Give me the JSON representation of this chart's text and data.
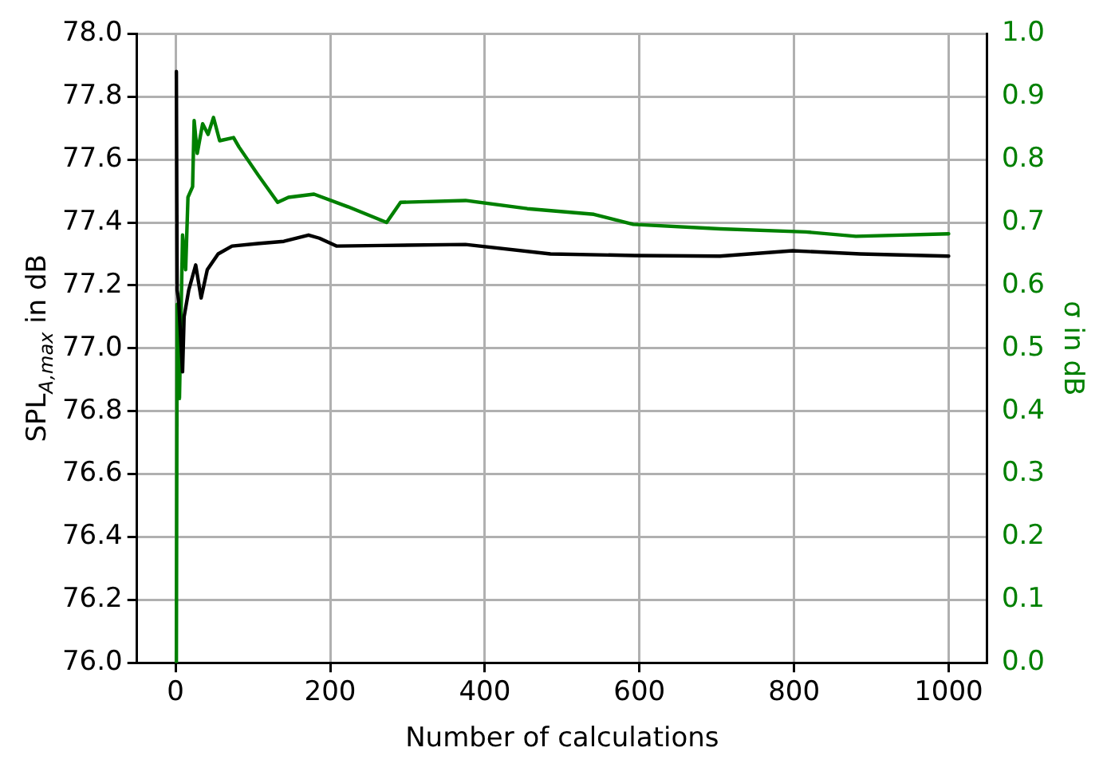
{
  "chart_data": {
    "type": "line",
    "xlabel": "Number of calculations",
    "ylabel": "SPL$_{A,max}$ in dB",
    "y2label": "σ in dB",
    "xlim": [
      -50,
      1050
    ],
    "xticks": [
      0,
      200,
      400,
      600,
      800,
      1000
    ],
    "ylim": [
      76,
      78
    ],
    "yticks": [
      {
        "value": 76,
        "label": "76.0"
      },
      76.2,
      76.4,
      76.6,
      76.8,
      {
        "value": 77,
        "label": "77.0"
      },
      77.2,
      77.4,
      77.6,
      77.8,
      {
        "value": 78,
        "label": "78.0"
      }
    ],
    "y2lim": [
      0,
      1
    ],
    "y2ticks": [
      {
        "value": 0,
        "label": "0.0"
      },
      0.1,
      0.2,
      0.3,
      0.4,
      0.5,
      0.6,
      0.7,
      0.8,
      0.9,
      {
        "value": 1,
        "label": "1.0"
      }
    ],
    "grid": true,
    "legend": false,
    "marker": "none",
    "line_style": "solid",
    "series": [
      {
        "color": "#000000",
        "x": [
          1,
          2,
          4,
          9,
          11,
          17,
          26,
          33,
          41,
          55,
          73,
          106,
          140,
          172,
          186,
          208,
          267,
          375,
          485,
          594,
          704,
          798,
          886,
          1000
        ],
        "values": [
          77.88,
          77.185,
          77.15,
          76.925,
          77.1,
          77.185,
          77.265,
          77.16,
          77.25,
          77.3,
          77.325,
          77.333,
          77.34,
          77.36,
          77.35,
          77.325,
          77.327,
          77.33,
          77.3,
          77.295,
          77.293,
          77.31,
          77.3,
          77.293
        ]
      },
      {
        "color": "#008000",
        "axis": "y2",
        "x": [
          1,
          2,
          5,
          9,
          13,
          16,
          22,
          24,
          28,
          35,
          42,
          49,
          57,
          75,
          82,
          107,
          132,
          146,
          179,
          223,
          273,
          291,
          375,
          455,
          541,
          592,
          704,
          815,
          880,
          1000
        ],
        "values": [
          0,
          0.57,
          0.42,
          0.68,
          0.625,
          0.74,
          0.757,
          0.862,
          0.81,
          0.857,
          0.84,
          0.867,
          0.83,
          0.835,
          0.82,
          0.775,
          0.732,
          0.74,
          0.745,
          0.725,
          0.7,
          0.732,
          0.735,
          0.722,
          0.713,
          0.697,
          0.69,
          0.685,
          0.678,
          0.682
        ]
      }
    ]
  }
}
